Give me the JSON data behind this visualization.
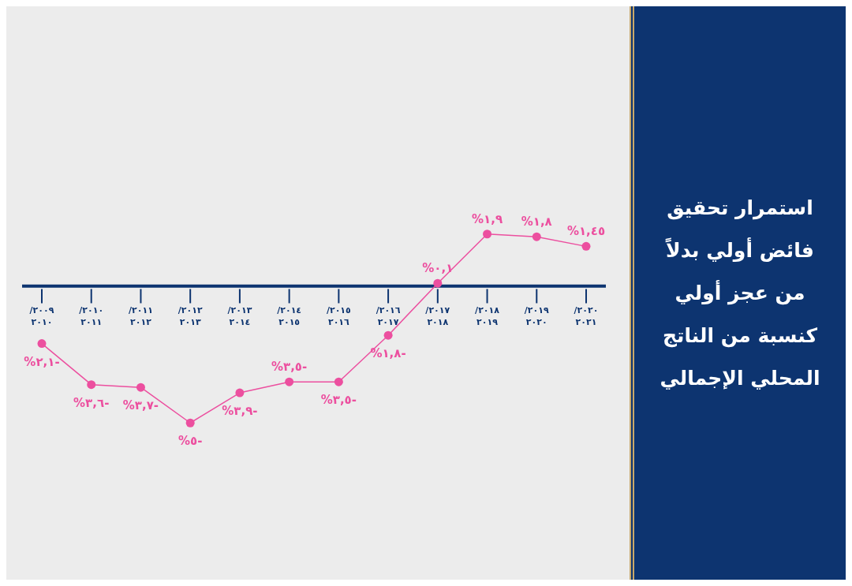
{
  "chart_data": {
    "type": "line",
    "title": "استمرار تحقيق فائض أولي بدلاً من عجز أولي كنسبة من الناتج المحلي الإجمالي",
    "categories": [
      "٢٠٠٩/ ٢٠١٠",
      "٢٠١٠/ ٢٠١١",
      "٢٠١١/ ٢٠١٢",
      "٢٠١٢/ ٢٠١٣",
      "٢٠١٣/ ٢٠١٤",
      "٢٠١٤/ ٢٠١٥",
      "٢٠١٥/ ٢٠١٦",
      "٢٠١٦/ ٢٠١٧",
      "٢٠١٧/ ٢٠١٨",
      "٢٠١٨/ ٢٠١٩",
      "٢٠١٩/ ٢٠٢٠",
      "٢٠٢٠/ ٢٠٢١"
    ],
    "series": [
      {
        "color": "#ec4f9f",
        "values": [
          -2.1,
          -3.6,
          -3.7,
          -5,
          -3.9,
          -3.5,
          -3.5,
          -1.8,
          0.1,
          1.9,
          1.8,
          1.45
        ],
        "value_labels": [
          "-٢,١%",
          "-٣,٦%",
          "-٣,٧%",
          "-٥%",
          "-٣,٩%",
          "-٣,٥%",
          "-٣,٥%",
          "-١,٨%",
          "٠,١%",
          "١,٩%",
          "١,٨%",
          "١,٤٥%"
        ]
      }
    ],
    "marker": "circle"
  }
}
